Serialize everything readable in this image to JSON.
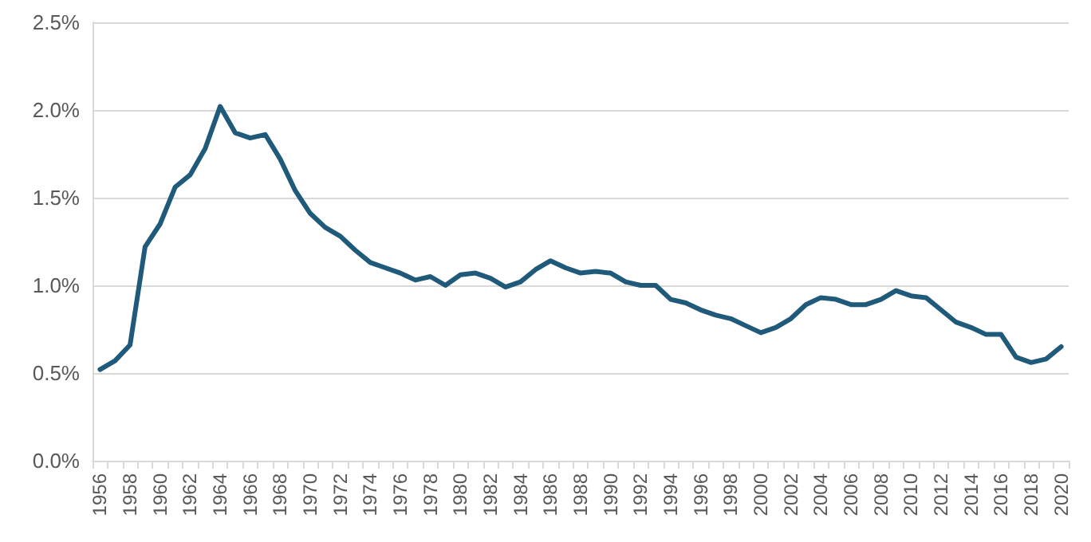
{
  "chart_data": {
    "type": "line",
    "categories": [
      "1956",
      null,
      "1958",
      null,
      "1960",
      null,
      "1962",
      null,
      "1964",
      null,
      "1966",
      null,
      "1968",
      null,
      "1970",
      null,
      "1972",
      null,
      "1974",
      null,
      "1976",
      null,
      "1978",
      null,
      "1980",
      null,
      "1982",
      null,
      "1984",
      null,
      "1986",
      null,
      "1988",
      null,
      "1990",
      null,
      "1992",
      null,
      "1994",
      null,
      "1996",
      null,
      "1998",
      null,
      "2000",
      null,
      "2002",
      null,
      "2004",
      null,
      "2006",
      null,
      "2008",
      null,
      "2010",
      null,
      "2012",
      null,
      "2014",
      null,
      "2016",
      null,
      "2018",
      null,
      "2020"
    ],
    "series": [
      {
        "color": "#1f5a7a",
        "values": [
          0.52,
          0.57,
          0.66,
          1.22,
          1.35,
          1.56,
          1.63,
          1.78,
          2.02,
          1.87,
          1.84,
          1.86,
          1.72,
          1.54,
          1.41,
          1.33,
          1.28,
          1.2,
          1.13,
          1.1,
          1.07,
          1.03,
          1.05,
          1.0,
          1.06,
          1.07,
          1.04,
          0.99,
          1.02,
          1.09,
          1.14,
          1.1,
          1.07,
          1.08,
          1.07,
          1.02,
          1.0,
          1.0,
          0.92,
          0.9,
          0.86,
          0.83,
          0.81,
          0.77,
          0.73,
          0.76,
          0.81,
          0.89,
          0.93,
          0.92,
          0.89,
          0.89,
          0.92,
          0.97,
          0.94,
          0.93,
          0.86,
          0.79,
          0.76,
          0.72,
          0.72,
          0.59,
          0.56,
          0.58,
          0.65
        ]
      }
    ],
    "ylim": [
      0,
      2.5
    ],
    "yticks": [
      {
        "value": 0,
        "label": "0.0%"
      },
      {
        "value": 0.5,
        "label": "0.5%"
      },
      {
        "value": 1,
        "label": "1.0%"
      },
      {
        "value": 1.5,
        "label": "1.5%"
      },
      {
        "value": 2,
        "label": "2.0%"
      },
      {
        "value": 2.5,
        "label": "2.5%"
      }
    ],
    "grid": "y",
    "marker": "none",
    "line_style": "solid"
  }
}
